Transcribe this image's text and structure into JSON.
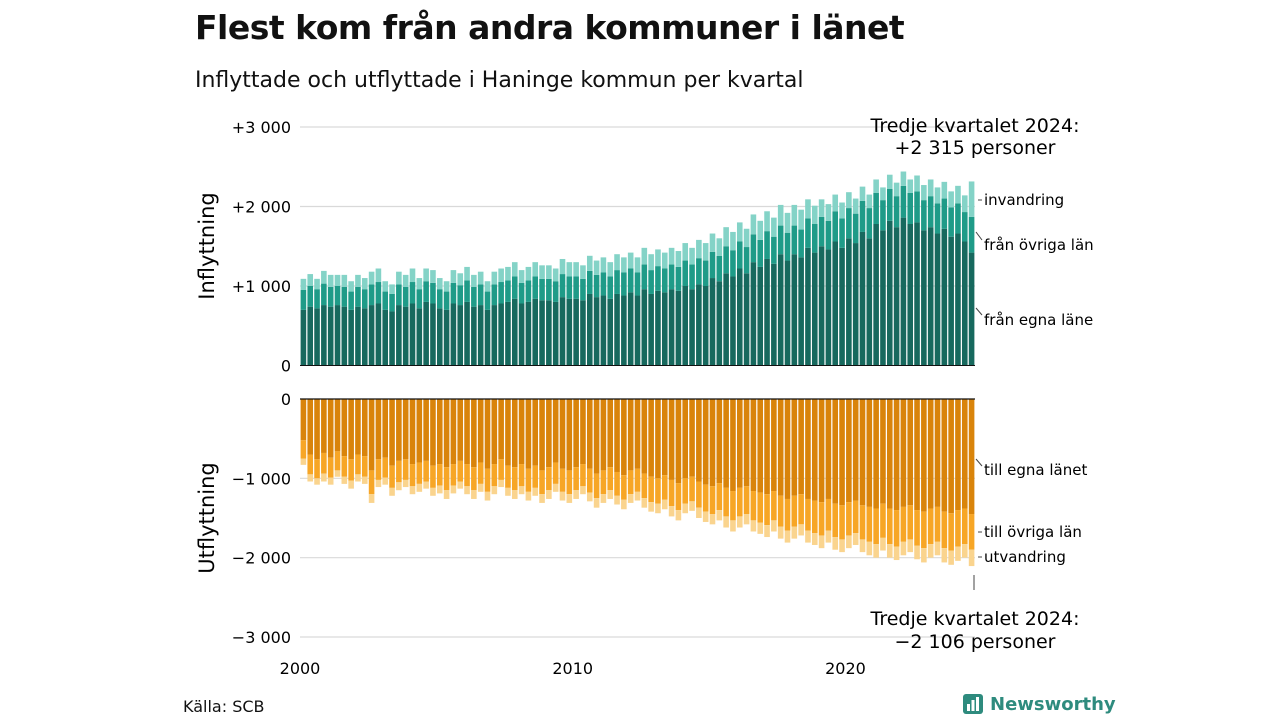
{
  "header": {
    "title": "Flest kom från andra kommuner i länet",
    "subtitle": "Inflyttade och utflyttade i Haninge kommun per kvartal"
  },
  "footer": {
    "source": "Källa: SCB",
    "brand": "Newsworthy"
  },
  "colors": {
    "in_egna": "#17695e",
    "in_ovriga": "#1f9b88",
    "in_invandring": "#84d3c7",
    "out_egna": "#d9840b",
    "out_ovriga": "#f7a626",
    "out_utvandring": "#fad48e",
    "grid": "#d9d9d9"
  },
  "chart_data": {
    "type": "bar",
    "stacked": true,
    "x": {
      "start_year": 2000,
      "start_quarter": 1,
      "end_year": 2024,
      "end_quarter": 3,
      "ticks": [
        2000,
        2010,
        2020
      ],
      "tick_labels": [
        "2000",
        "2010",
        "2020"
      ]
    },
    "top_panel": {
      "ylabel": "Inflyttning",
      "ylim": [
        0,
        3000
      ],
      "ticks": [
        0,
        1000,
        2000,
        3000
      ],
      "tick_labels": [
        "0",
        "+1 000",
        "+2 000",
        "+3 000"
      ],
      "annotation": {
        "line1": "Tredje kvartalet 2024:",
        "line2": "+2 315 personer"
      },
      "series": [
        {
          "name": "från egna länet",
          "label": "från egna läne",
          "color": "#17695e",
          "values": [
            700,
            740,
            720,
            760,
            740,
            760,
            740,
            700,
            740,
            720,
            760,
            780,
            700,
            680,
            760,
            740,
            780,
            720,
            800,
            780,
            720,
            700,
            780,
            760,
            800,
            740,
            760,
            700,
            760,
            780,
            800,
            840,
            780,
            800,
            840,
            820,
            820,
            800,
            860,
            840,
            840,
            820,
            900,
            860,
            880,
            840,
            900,
            880,
            920,
            880,
            960,
            900,
            940,
            920,
            960,
            940,
            1000,
            960,
            1020,
            1000,
            1100,
            1060,
            1160,
            1120,
            1220,
            1160,
            1300,
            1240,
            1340,
            1280,
            1400,
            1320,
            1400,
            1360,
            1480,
            1420,
            1500,
            1460,
            1560,
            1480,
            1600,
            1540,
            1680,
            1600,
            1780,
            1700,
            1820,
            1740,
            1860,
            1780,
            1800,
            1700,
            1740,
            1660,
            1720,
            1620,
            1660,
            1560,
            1420
          ]
        },
        {
          "name": "från övriga län",
          "label": "från övriga län",
          "color": "#1f9b88",
          "values": [
            250,
            260,
            240,
            270,
            250,
            240,
            250,
            230,
            250,
            240,
            260,
            270,
            230,
            220,
            260,
            250,
            270,
            240,
            260,
            260,
            240,
            230,
            260,
            250,
            270,
            250,
            260,
            230,
            260,
            270,
            270,
            280,
            260,
            270,
            280,
            270,
            270,
            260,
            290,
            280,
            280,
            270,
            290,
            280,
            290,
            280,
            300,
            290,
            300,
            290,
            310,
            300,
            310,
            300,
            310,
            300,
            320,
            310,
            330,
            320,
            330,
            320,
            340,
            330,
            340,
            330,
            350,
            340,
            350,
            340,
            360,
            350,
            360,
            350,
            370,
            360,
            370,
            360,
            380,
            370,
            380,
            370,
            390,
            380,
            390,
            380,
            400,
            390,
            400,
            390,
            390,
            380,
            390,
            380,
            380,
            370,
            380,
            370,
            450
          ]
        },
        {
          "name": "invandring",
          "label": "invandring",
          "color": "#84d3c7",
          "values": [
            140,
            150,
            130,
            160,
            150,
            140,
            150,
            130,
            150,
            140,
            160,
            170,
            130,
            120,
            160,
            150,
            170,
            140,
            160,
            160,
            140,
            130,
            160,
            150,
            170,
            150,
            160,
            130,
            160,
            170,
            170,
            180,
            160,
            170,
            180,
            170,
            170,
            160,
            190,
            180,
            180,
            170,
            190,
            180,
            190,
            180,
            200,
            190,
            200,
            190,
            210,
            200,
            210,
            200,
            210,
            200,
            220,
            210,
            230,
            220,
            230,
            220,
            240,
            230,
            240,
            230,
            250,
            240,
            250,
            240,
            260,
            250,
            260,
            250,
            240,
            230,
            220,
            210,
            210,
            200,
            200,
            190,
            180,
            170,
            170,
            160,
            180,
            170,
            180,
            170,
            200,
            190,
            210,
            200,
            210,
            200,
            220,
            210,
            445
          ]
        }
      ]
    },
    "bottom_panel": {
      "ylabel": "Utflyttning",
      "ylim": [
        -3000,
        0
      ],
      "ticks": [
        0,
        -1000,
        -2000,
        -3000
      ],
      "tick_labels": [
        "0",
        "−1 000",
        "−2 000",
        "−3 000"
      ],
      "annotation": {
        "line1": "Tredje kvartalet 2024:",
        "line2": "−2 106 personer"
      },
      "series": [
        {
          "name": "till egna länet",
          "label": "till egna länet",
          "color": "#d9840b",
          "values": [
            -520,
            -700,
            -760,
            -680,
            -740,
            -660,
            -720,
            -760,
            -700,
            -720,
            -900,
            -760,
            -740,
            -840,
            -780,
            -760,
            -820,
            -800,
            -780,
            -840,
            -820,
            -860,
            -820,
            -780,
            -820,
            -860,
            -800,
            -880,
            -820,
            -760,
            -840,
            -860,
            -820,
            -880,
            -840,
            -900,
            -860,
            -800,
            -880,
            -900,
            -860,
            -820,
            -880,
            -940,
            -900,
            -860,
            -920,
            -960,
            -900,
            -880,
            -940,
            -980,
            -1000,
            -960,
            -1020,
            -1060,
            -1000,
            -980,
            -1040,
            -1080,
            -1100,
            -1060,
            -1120,
            -1160,
            -1120,
            -1100,
            -1160,
            -1180,
            -1200,
            -1160,
            -1220,
            -1260,
            -1220,
            -1200,
            -1260,
            -1280,
            -1300,
            -1260,
            -1320,
            -1340,
            -1300,
            -1280,
            -1340,
            -1360,
            -1380,
            -1320,
            -1380,
            -1400,
            -1360,
            -1340,
            -1400,
            -1420,
            -1380,
            -1360,
            -1420,
            -1440,
            -1400,
            -1380,
            -1450
          ]
        },
        {
          "name": "till övriga län",
          "label": "till övriga län",
          "color": "#f7a626",
          "values": [
            -230,
            -250,
            -240,
            -260,
            -250,
            -240,
            -260,
            -270,
            -250,
            -260,
            -300,
            -260,
            -250,
            -280,
            -270,
            -260,
            -280,
            -270,
            -260,
            -280,
            -270,
            -290,
            -270,
            -260,
            -280,
            -290,
            -270,
            -290,
            -280,
            -260,
            -280,
            -290,
            -280,
            -290,
            -280,
            -300,
            -290,
            -270,
            -290,
            -300,
            -290,
            -280,
            -300,
            -310,
            -300,
            -290,
            -300,
            -310,
            -300,
            -290,
            -310,
            -320,
            -320,
            -310,
            -330,
            -340,
            -320,
            -310,
            -330,
            -340,
            -350,
            -340,
            -360,
            -370,
            -360,
            -350,
            -370,
            -380,
            -390,
            -370,
            -390,
            -400,
            -390,
            -380,
            -400,
            -410,
            -420,
            -400,
            -420,
            -430,
            -420,
            -410,
            -430,
            -440,
            -450,
            -430,
            -450,
            -460,
            -440,
            -430,
            -450,
            -460,
            -450,
            -440,
            -460,
            -470,
            -460,
            -450,
            -450
          ]
        },
        {
          "name": "utvandring",
          "label": "utvandring",
          "color": "#fad48e",
          "values": [
            -80,
            -90,
            -80,
            -100,
            -90,
            -80,
            -90,
            -100,
            -90,
            -90,
            -110,
            -90,
            -90,
            -100,
            -100,
            -90,
            -100,
            -100,
            -90,
            -100,
            -100,
            -110,
            -100,
            -90,
            -100,
            -110,
            -100,
            -110,
            -100,
            -90,
            -100,
            -110,
            -100,
            -110,
            -100,
            -110,
            -110,
            -100,
            -110,
            -110,
            -110,
            -100,
            -110,
            -120,
            -110,
            -110,
            -110,
            -120,
            -110,
            -110,
            -120,
            -120,
            -120,
            -120,
            -130,
            -130,
            -120,
            -120,
            -130,
            -130,
            -130,
            -130,
            -140,
            -140,
            -140,
            -130,
            -140,
            -140,
            -150,
            -140,
            -150,
            -150,
            -150,
            -140,
            -150,
            -150,
            -160,
            -150,
            -160,
            -160,
            -160,
            -150,
            -160,
            -170,
            -170,
            -160,
            -170,
            -170,
            -170,
            -160,
            -170,
            -180,
            -170,
            -170,
            -180,
            -180,
            -180,
            -170,
            -206
          ]
        }
      ]
    }
  }
}
